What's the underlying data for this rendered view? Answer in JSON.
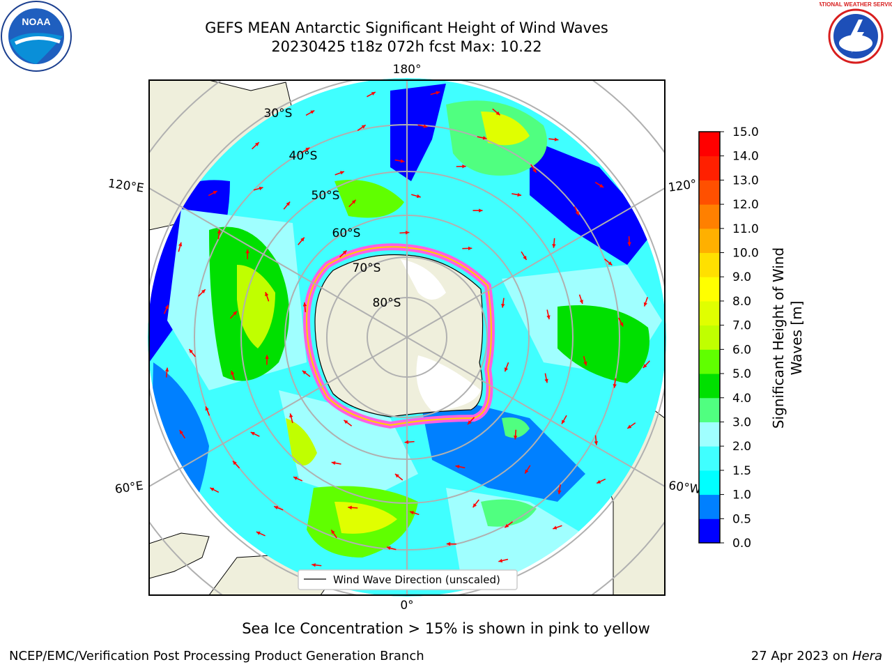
{
  "title": {
    "line1": "GEFS MEAN Antarctic Significant Height of Wind Waves",
    "line2": "20230425 t18z 072h fcst   Max: 10.22"
  },
  "map": {
    "projection": "south-polar-stereographic",
    "longitude_labels": [
      "180°",
      "120°E",
      "120°",
      "60°E",
      "60°W",
      "0°"
    ],
    "latitude_labels": [
      "30°S",
      "40°S",
      "50°S",
      "60°S",
      "70°S",
      "80°S"
    ],
    "legend_label": "Wind Wave Direction (unscaled)",
    "arrow_color": "#ff0000",
    "land_color": "#efefdc",
    "sea_ice_note": "Sea Ice Concentration > 15% is shown in pink to yellow"
  },
  "colorbar": {
    "label_line1": "Significant Height of Wind",
    "label_line2": "Waves [m]",
    "ticks": [
      "0.0",
      "0.5",
      "1.0",
      "1.5",
      "2.0",
      "3.0",
      "4.0",
      "5.0",
      "6.0",
      "7.0",
      "8.0",
      "9.0",
      "10.0",
      "11.0",
      "12.0",
      "13.0",
      "14.0",
      "15.0"
    ],
    "colors": [
      "#0000ff",
      "#0080ff",
      "#00ffff",
      "#40ffff",
      "#a0ffff",
      "#50ff80",
      "#00e000",
      "#60ff00",
      "#c0ff00",
      "#e0ff00",
      "#ffff00",
      "#ffe000",
      "#ffb000",
      "#ff8000",
      "#ff5000",
      "#ff2000",
      "#ff0000"
    ]
  },
  "logos": {
    "noaa_text": "NOAA",
    "nws_text": "NATIONAL WEATHER SERVICE"
  },
  "footer": {
    "left": "NCEP/EMC/Verification Post Processing Product Generation Branch",
    "right_prefix": "27 Apr 2023 on ",
    "right_host": "Hera"
  }
}
